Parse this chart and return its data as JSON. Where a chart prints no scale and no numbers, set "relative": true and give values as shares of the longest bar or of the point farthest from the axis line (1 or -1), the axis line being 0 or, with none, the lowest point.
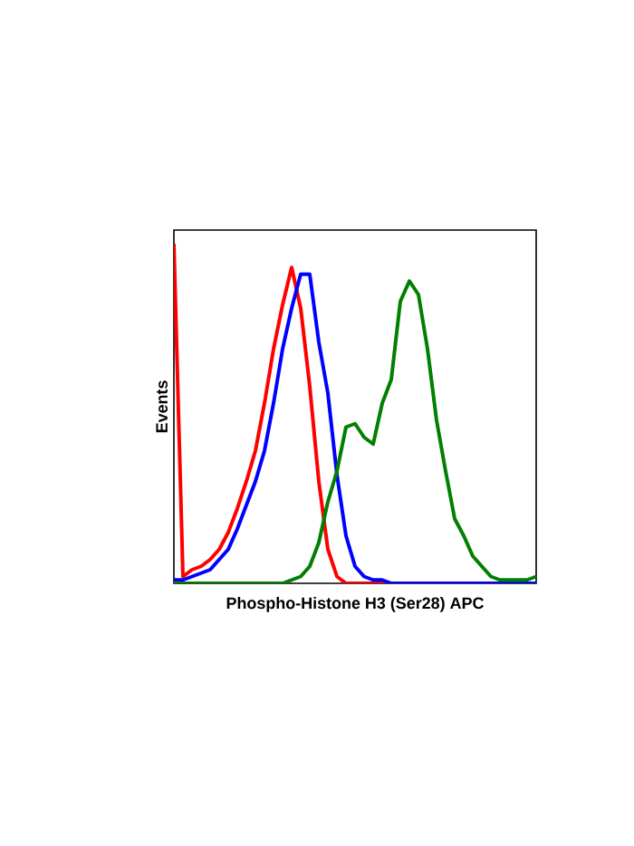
{
  "chart_data": {
    "type": "line",
    "xlabel": "Phospho-Histone H3 (Ser28) APC",
    "ylabel": "Events",
    "relative": true,
    "categories": [
      null,
      null,
      null,
      null,
      null,
      null,
      null,
      null,
      null,
      null,
      null,
      null,
      null,
      null,
      null,
      null,
      null,
      null,
      null,
      null,
      null,
      null,
      null,
      null,
      null,
      null,
      null,
      null,
      null,
      null,
      null,
      null,
      null,
      null,
      null,
      null,
      null,
      null,
      null,
      null,
      null
    ],
    "series": [
      {
        "color": "#ff0000",
        "values": [
          1.0,
          0.02,
          0.04,
          0.05,
          0.07,
          0.1,
          0.15,
          0.22,
          0.3,
          0.39,
          0.53,
          0.69,
          0.82,
          0.93,
          0.81,
          0.58,
          0.3,
          0.1,
          0.02,
          0,
          0,
          0,
          0,
          0,
          0,
          0,
          null,
          null,
          null,
          null,
          null,
          null,
          null,
          null,
          null,
          null,
          null,
          null,
          null,
          null,
          null
        ]
      },
      {
        "color": "#0000ff",
        "values": [
          0.01,
          0.01,
          0.02,
          0.03,
          0.04,
          0.07,
          0.1,
          0.16,
          0.23,
          0.3,
          0.39,
          0.53,
          0.69,
          0.81,
          0.91,
          0.91,
          0.71,
          0.56,
          0.32,
          0.14,
          0.05,
          0.02,
          0.01,
          0.01,
          0,
          0,
          0,
          0,
          0,
          0,
          0,
          0,
          0,
          0,
          0,
          0,
          0,
          0,
          0,
          0,
          0
        ]
      },
      {
        "color": "#008000",
        "values": [
          0,
          0,
          0,
          0,
          0,
          0,
          0,
          0,
          0,
          0,
          0,
          0,
          0,
          0.01,
          0.02,
          0.05,
          0.12,
          0.24,
          0.33,
          0.46,
          0.47,
          0.43,
          0.41,
          0.53,
          0.6,
          0.83,
          0.89,
          0.85,
          0.69,
          0.48,
          0.33,
          0.19,
          0.14,
          0.08,
          0.05,
          0.02,
          0.01,
          0.01,
          0.01,
          0.01,
          0.02
        ]
      }
    ]
  }
}
